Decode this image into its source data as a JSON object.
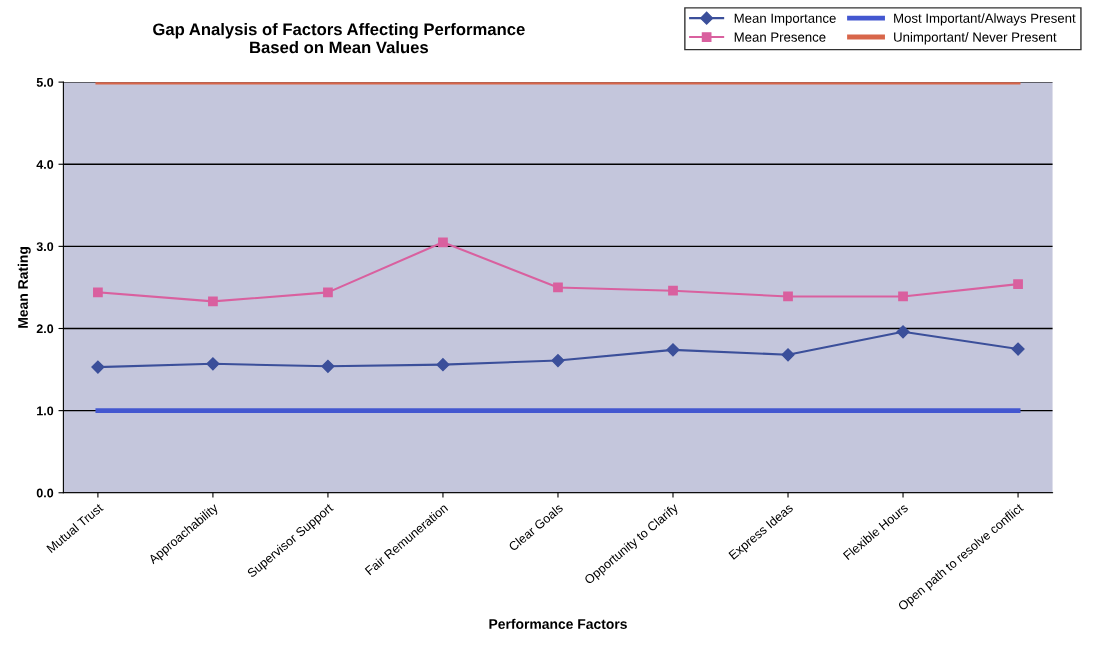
{
  "chart_data": {
    "type": "line",
    "title": "Gap Analysis of Factors Affecting Performance\nBased on Mean Values",
    "xlabel": "Performance Factors",
    "ylabel": "Mean Rating",
    "categories": [
      "Mutual Trust",
      "Approachability",
      "Supervisor Support",
      "Fair Remuneration",
      "Clear Goals",
      "Opportunity to Clarify",
      "Express Ideas",
      "Flexible Hours",
      "Open path to resolve conflict"
    ],
    "series": [
      {
        "name": "Mean Importance",
        "color": "#3b4f9a",
        "marker": "diamond",
        "values": [
          1.53,
          1.57,
          1.54,
          1.56,
          1.61,
          1.74,
          1.68,
          1.96,
          1.75
        ]
      },
      {
        "name": "Mean Presence",
        "color": "#d9609f",
        "marker": "square",
        "values": [
          2.44,
          2.33,
          2.44,
          3.05,
          2.5,
          2.46,
          2.39,
          2.39,
          2.54
        ]
      },
      {
        "name": "Most Important/Always Present",
        "color": "#4357d0",
        "marker": "none",
        "values": [
          1,
          1,
          1,
          1,
          1,
          1,
          1,
          1,
          1
        ]
      },
      {
        "name": "Unimportant/ Never Present",
        "color": "#d8664a",
        "marker": "none",
        "values": [
          5,
          5,
          5,
          5,
          5,
          5,
          5,
          5,
          5
        ]
      }
    ],
    "ylim": [
      0,
      5
    ],
    "yticks": [
      {
        "value": 0,
        "label": "0.0"
      },
      {
        "value": 1,
        "label": "1.0"
      },
      {
        "value": 2,
        "label": "2.0"
      },
      {
        "value": 3,
        "label": "3.0"
      },
      {
        "value": 4,
        "label": "4.0"
      },
      {
        "value": 5,
        "label": "5.0"
      }
    ],
    "grid": "y",
    "legend": "top right"
  }
}
